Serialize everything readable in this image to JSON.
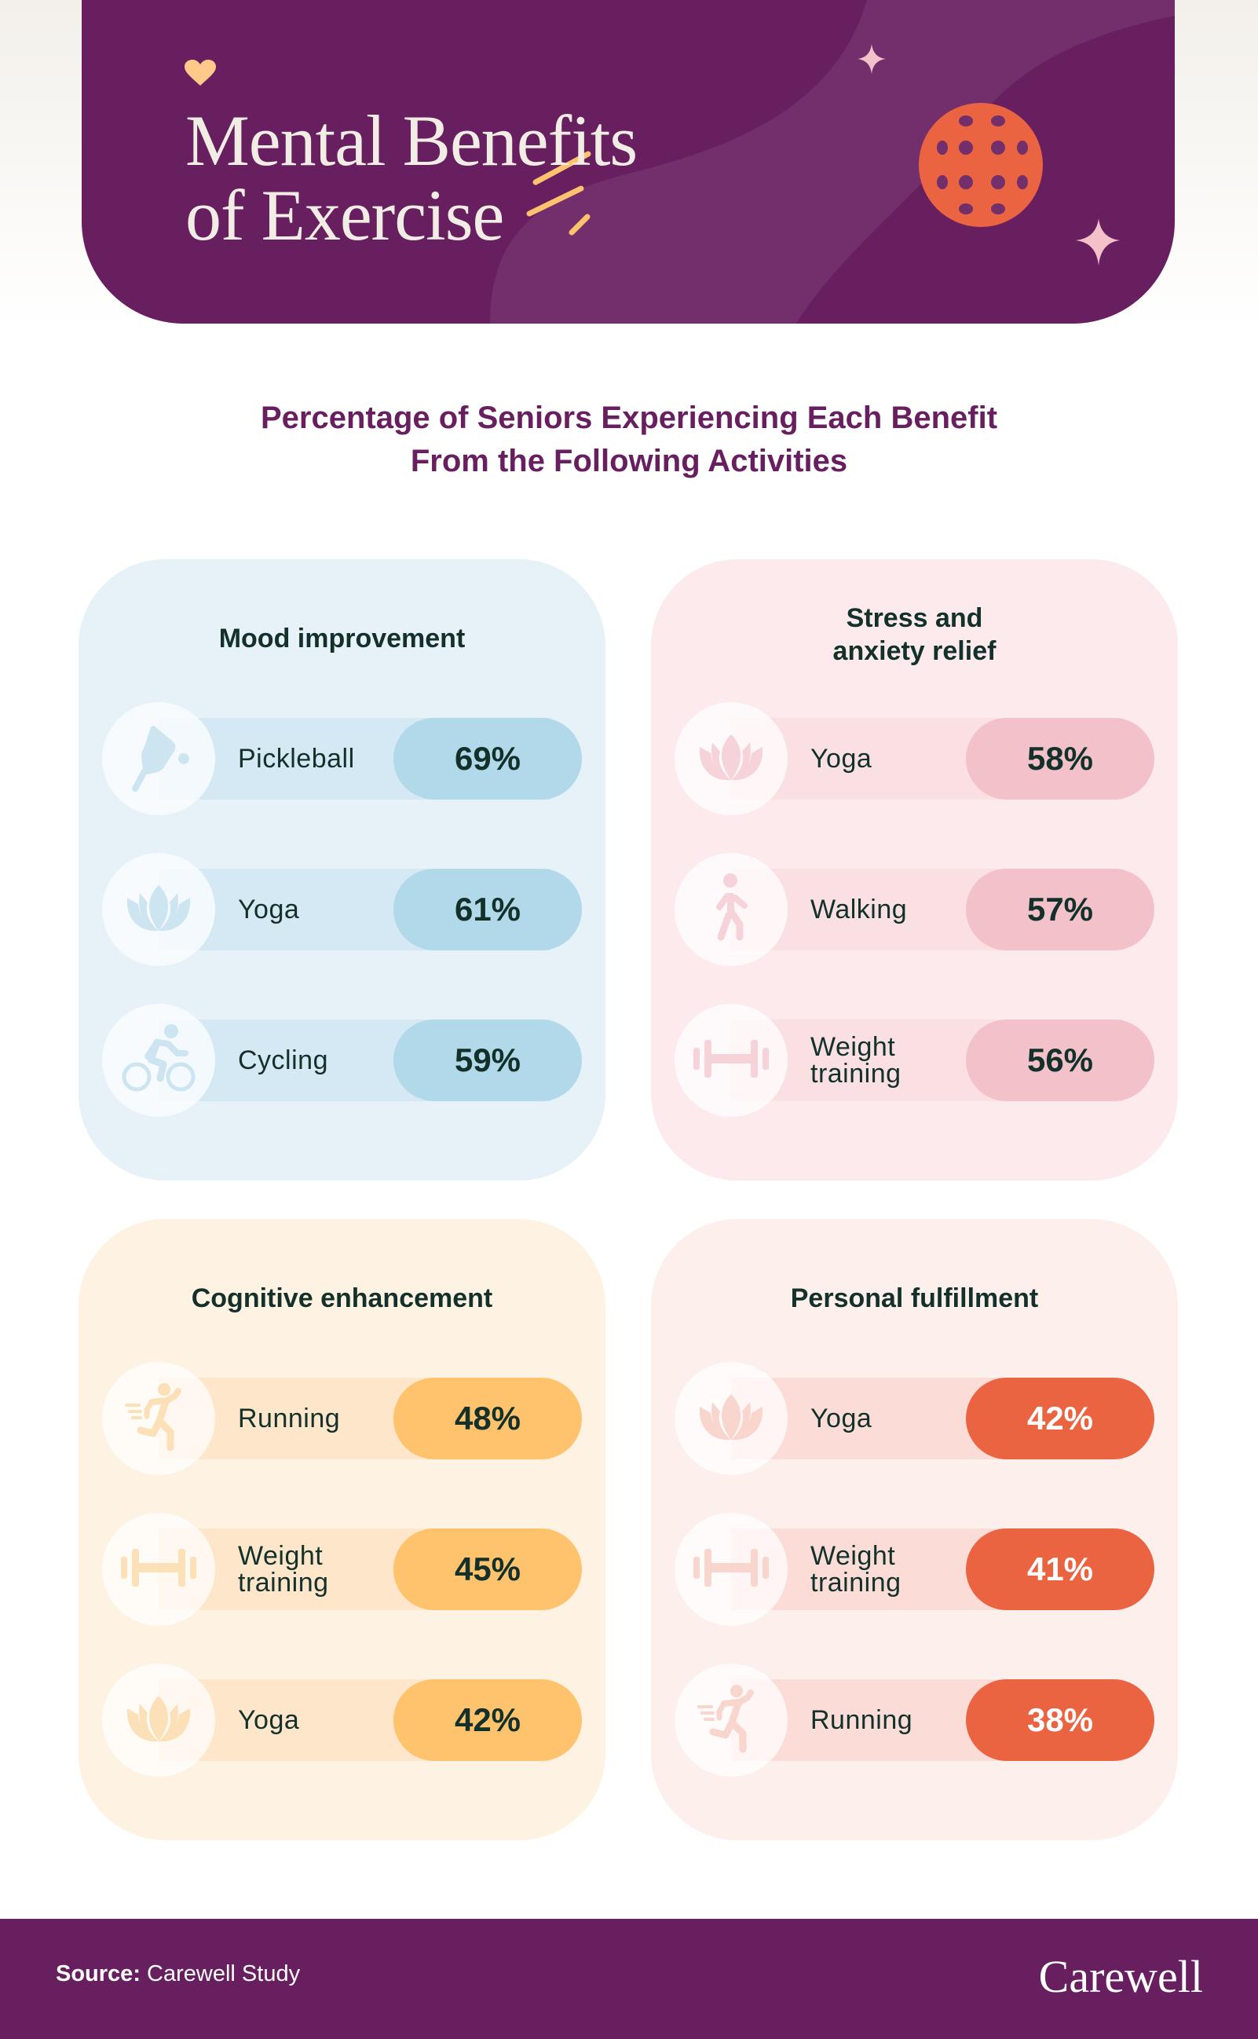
{
  "header": {
    "title_line1": "Mental Benefits",
    "title_line2": "of Exercise",
    "heart_icon": "heart-icon",
    "ball_icon": "pickleball-icon",
    "sparkle_icon": "sparkle-icon"
  },
  "subtitle": {
    "line1": "Percentage of Seniors Experiencing Each Benefit",
    "line2": "From the Following Activities"
  },
  "colors": {
    "brand_purple": "#681F5F",
    "text_dark": "#13312A",
    "mood": {
      "card": "#E6F1F8",
      "band": "#D4E9F3",
      "pill": "#B1D9E9",
      "icon": "#CDE5F1"
    },
    "stress": {
      "card": "#FCEAED",
      "band": "#FADFE3",
      "pill": "#F3C1CA",
      "icon": "#F6D3D9"
    },
    "cognitive": {
      "card": "#FEF2E3",
      "band": "#FDE6CA",
      "pill": "#FFC26D",
      "icon": "#FCE0B8"
    },
    "fulfillment": {
      "card": "#FCEFEC",
      "band": "#FBDCD6",
      "pill": "#EB6441",
      "icon": "#F8D5CD"
    }
  },
  "chart_data": {
    "type": "table",
    "title": "Mental Benefits of Exercise",
    "subtitle": "Percentage of Seniors Experiencing Each Benefit From the Following Activities",
    "unit": "%",
    "groups": [
      {
        "name": "Mood improvement",
        "title_lines": [
          "Mood improvement"
        ],
        "theme": "mood",
        "items": [
          {
            "activity": "Pickleball",
            "label_lines": [
              "Pickleball"
            ],
            "value": 69,
            "display": "69%",
            "icon": "pickleball-paddle-icon"
          },
          {
            "activity": "Yoga",
            "label_lines": [
              "Yoga"
            ],
            "value": 61,
            "display": "61%",
            "icon": "lotus-icon"
          },
          {
            "activity": "Cycling",
            "label_lines": [
              "Cycling"
            ],
            "value": 59,
            "display": "59%",
            "icon": "cyclist-icon"
          }
        ]
      },
      {
        "name": "Stress and anxiety relief",
        "title_lines": [
          "Stress and",
          "anxiety relief"
        ],
        "theme": "stress",
        "items": [
          {
            "activity": "Yoga",
            "label_lines": [
              "Yoga"
            ],
            "value": 58,
            "display": "58%",
            "icon": "lotus-icon"
          },
          {
            "activity": "Walking",
            "label_lines": [
              "Walking"
            ],
            "value": 57,
            "display": "57%",
            "icon": "walking-person-icon"
          },
          {
            "activity": "Weight training",
            "label_lines": [
              "Weight",
              "training"
            ],
            "value": 56,
            "display": "56%",
            "icon": "dumbbell-icon"
          }
        ]
      },
      {
        "name": "Cognitive enhancement",
        "title_lines": [
          "Cognitive enhancement"
        ],
        "theme": "cognitive",
        "items": [
          {
            "activity": "Running",
            "label_lines": [
              "Running"
            ],
            "value": 48,
            "display": "48%",
            "icon": "running-person-icon"
          },
          {
            "activity": "Weight training",
            "label_lines": [
              "Weight",
              "training"
            ],
            "value": 45,
            "display": "45%",
            "icon": "dumbbell-icon"
          },
          {
            "activity": "Yoga",
            "label_lines": [
              "Yoga"
            ],
            "value": 42,
            "display": "42%",
            "icon": "lotus-icon"
          }
        ]
      },
      {
        "name": "Personal fulfillment",
        "title_lines": [
          "Personal fulfillment"
        ],
        "theme": "fulfillment",
        "items": [
          {
            "activity": "Yoga",
            "label_lines": [
              "Yoga"
            ],
            "value": 42,
            "display": "42%",
            "icon": "lotus-icon"
          },
          {
            "activity": "Weight training",
            "label_lines": [
              "Weight",
              "training"
            ],
            "value": 41,
            "display": "41%",
            "icon": "dumbbell-icon"
          },
          {
            "activity": "Running",
            "label_lines": [
              "Running"
            ],
            "value": 38,
            "display": "38%",
            "icon": "running-person-icon"
          }
        ]
      }
    ]
  },
  "footer": {
    "source_label": "Source:",
    "source_value": "Carewell Study",
    "logo": "Carewell"
  }
}
